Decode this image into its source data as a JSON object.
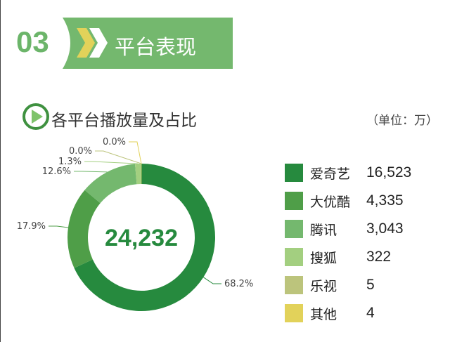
{
  "section": {
    "number": "03",
    "title": "平台表现"
  },
  "subsection": {
    "title": "各平台播放量及占比",
    "unit": "（单位：万）"
  },
  "chart_data": {
    "type": "pie",
    "donut": true,
    "total": "24,232",
    "direction": "clockwise from top",
    "categories": [
      "爱奇艺",
      "大优酷",
      "腾讯",
      "搜狐",
      "乐视",
      "其他"
    ],
    "values": [
      16523,
      4335,
      3043,
      322,
      5,
      4
    ],
    "value_labels": [
      "16,523",
      "4,335",
      "3,043",
      "322",
      "5",
      "4"
    ],
    "percent_labels": [
      "68.2%",
      "17.9%",
      "12.6%",
      "1.3%",
      "0.0%",
      "0.0%"
    ],
    "colors": [
      "#268a3e",
      "#4f9e48",
      "#74b86e",
      "#a3cf80",
      "#bcc47c",
      "#e2d25a"
    ],
    "legend_position": "right"
  }
}
